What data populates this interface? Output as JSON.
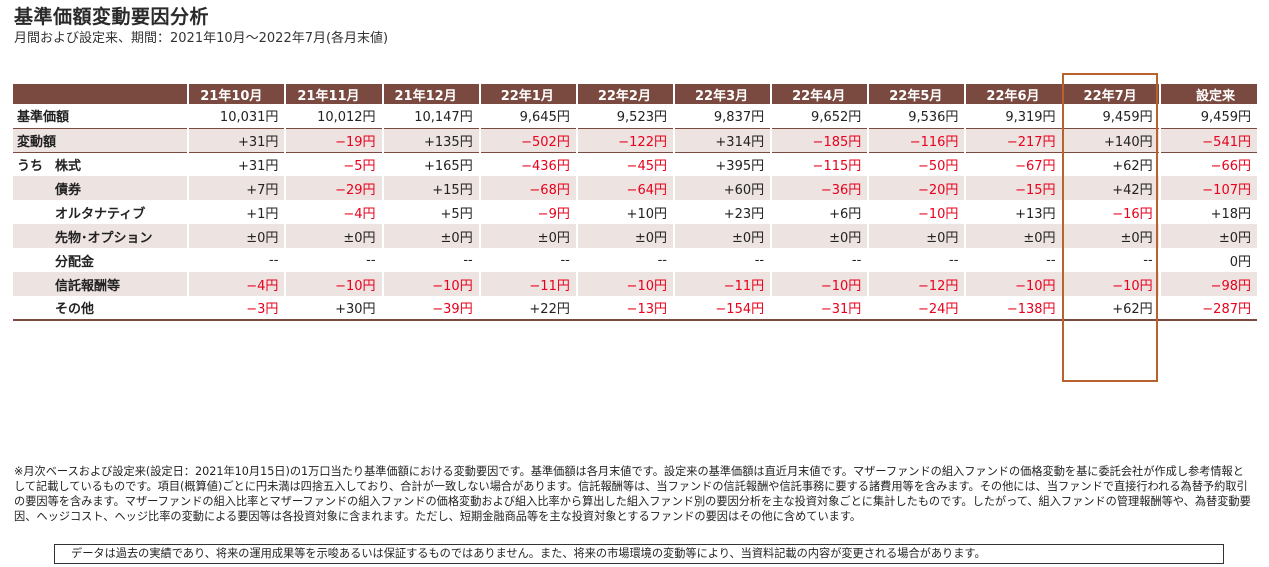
{
  "title": "基準価額変動要因分析",
  "subtitle": "月間および設定来、期間：2021年10月～2022年7月(各月末値)",
  "columns": [
    "21年10月",
    "21年11月",
    "21年12月",
    "22年1月",
    "22年2月",
    "22年3月",
    "22年4月",
    "22年5月",
    "22年6月",
    "22年7月",
    "設定来"
  ],
  "rows": [
    {
      "label": "基準価額",
      "prefix": "",
      "values": [
        "10,031円",
        "10,012円",
        "10,147円",
        "9,645円",
        "9,523円",
        "9,837円",
        "9,652円",
        "9,536円",
        "9,319円",
        "9,459円",
        "9,459円"
      ]
    },
    {
      "label": "変動額",
      "prefix": "",
      "values": [
        "+31円",
        "−19円",
        "+135円",
        "−502円",
        "−122円",
        "+314円",
        "−185円",
        "−116円",
        "−217円",
        "+140円",
        "−541円"
      ]
    },
    {
      "label": "株式",
      "prefix": "うち",
      "values": [
        "+31円",
        "−5円",
        "+165円",
        "−436円",
        "−45円",
        "+395円",
        "−115円",
        "−50円",
        "−67円",
        "+62円",
        "−66円"
      ]
    },
    {
      "label": "債券",
      "prefix": "",
      "values": [
        "+7円",
        "−29円",
        "+15円",
        "−68円",
        "−64円",
        "+60円",
        "−36円",
        "−20円",
        "−15円",
        "+42円",
        "−107円"
      ]
    },
    {
      "label": "オルタナティブ",
      "prefix": "",
      "values": [
        "+1円",
        "−4円",
        "+5円",
        "−9円",
        "+10円",
        "+23円",
        "+6円",
        "−10円",
        "+13円",
        "−16円",
        "+18円"
      ]
    },
    {
      "label": "先物･オプション",
      "prefix": "",
      "values": [
        "±0円",
        "±0円",
        "±0円",
        "±0円",
        "±0円",
        "±0円",
        "±0円",
        "±0円",
        "±0円",
        "±0円",
        "±0円"
      ]
    },
    {
      "label": "分配金",
      "prefix": "",
      "values": [
        "--",
        "--",
        "--",
        "--",
        "--",
        "--",
        "--",
        "--",
        "--",
        "--",
        "0円"
      ]
    },
    {
      "label": "信託報酬等",
      "prefix": "",
      "values": [
        "−4円",
        "−10円",
        "−10円",
        "−11円",
        "−10円",
        "−11円",
        "−10円",
        "−12円",
        "−10円",
        "−10円",
        "−98円"
      ]
    },
    {
      "label": "その他",
      "prefix": "",
      "values": [
        "−3円",
        "+30円",
        "−39円",
        "+22円",
        "−13円",
        "−154円",
        "−31円",
        "−24円",
        "−138円",
        "+62円",
        "−287円"
      ]
    }
  ],
  "highlight_column": "22年7月",
  "colors": {
    "header_bg": "#7a4a40",
    "shade": "#ede3e1",
    "negative": "#e8001c",
    "highlight_border": "#b8632e"
  },
  "note": "※月次ベースおよび設定来(設定日：2021年10月15日)の1万口当たり基準価額における変動要因です。基準価額は各月末値です。設定来の基準価額は直近月末値です。マザーファンドの組入ファンドの価格変動を基に委託会社が作成し参考情報として記載しているものです。項目(概算値)ごとに円未満は四捨五入しており、合計が一致しない場合があります。信託報酬等は、当ファンドの信託報酬や信託事務に要する諸費用等を含みます。その他には、当ファンドで直接行われる為替予約取引の要因等を含みます。マザーファンドの組入比率とマザーファンドの組入ファンドの価格変動および組入比率から算出した組入ファンド別の要因分析を主な投資対象ごとに集計したものです。したがって、組入ファンドの管理報酬等や、為替変動要因、ヘッジコスト、ヘッジ比率の変動による要因等は各投資対象に含まれます。ただし、短期金融商品等を主な投資対象とするファンドの要因はその他に含めています。",
  "disclaimer": "データは過去の実績であり、将来の運用成果等を示唆あるいは保証するものではありません。また、将来の市場環境の変動等により、当資料記載の内容が変更される場合があります。"
}
